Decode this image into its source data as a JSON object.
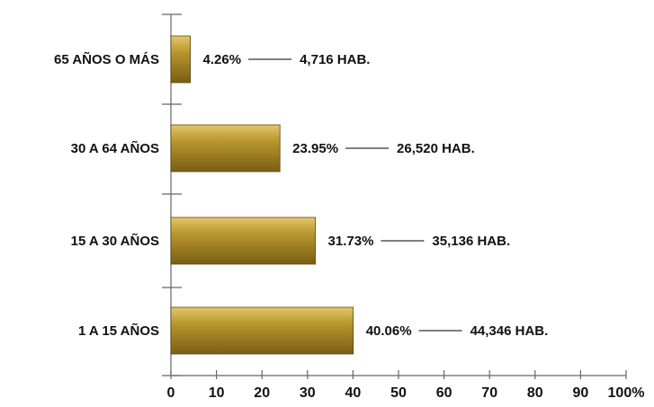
{
  "chart_data": {
    "type": "bar",
    "orientation": "horizontal",
    "categories": [
      "65 AÑOS O MÁS",
      "30 A 64 AÑOS",
      "15 A 30 AÑOS",
      "1 A 15 AÑOS"
    ],
    "values": [
      4.26,
      23.95,
      31.73,
      40.06
    ],
    "value_labels": [
      "4.26%",
      "23.95%",
      "31.73%",
      "40.06%"
    ],
    "population_labels": [
      "4,716 HAB.",
      "26,520 HAB.",
      "35,136 HAB.",
      "44,346 HAB."
    ],
    "x_ticks": [
      "0",
      "10",
      "20",
      "30",
      "40",
      "50",
      "60",
      "70",
      "80",
      "90",
      "100%"
    ],
    "xlim": [
      0,
      100
    ],
    "bar_color": "#b8962e",
    "bar_highlight": "#e3c76d",
    "bar_shadow": "#7a5e14",
    "axis_color": "#666666",
    "grid": false
  }
}
